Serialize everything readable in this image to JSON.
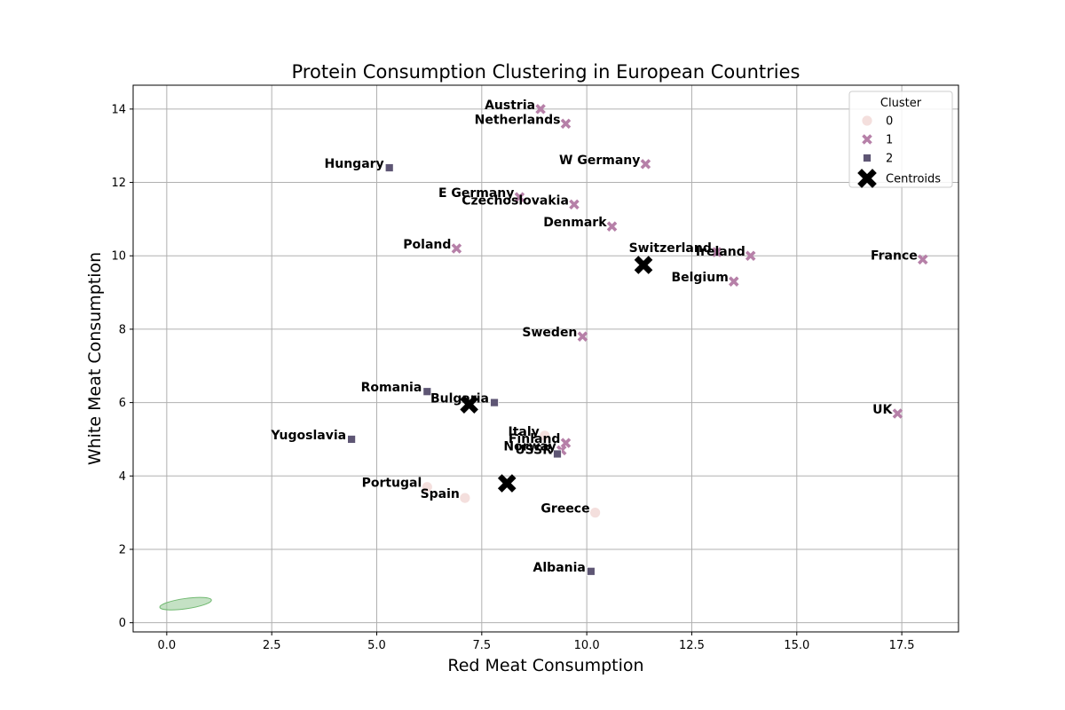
{
  "chart_data": {
    "type": "scatter",
    "title": "Protein Consumption Clustering in European Countries",
    "xlabel": "Red Meat Consumption",
    "ylabel": "White Meat Consumption",
    "xlim": [
      -0.8,
      18.85
    ],
    "ylim": [
      -0.25,
      14.65
    ],
    "xticks": [
      "0.0",
      "2.5",
      "5.0",
      "7.5",
      "10.0",
      "12.5",
      "15.0",
      "17.5"
    ],
    "xtick_values": [
      0,
      2.5,
      5,
      7.5,
      10,
      12.5,
      15,
      17.5
    ],
    "yticks": [
      "0",
      "2",
      "4",
      "6",
      "8",
      "10",
      "12",
      "14"
    ],
    "ytick_values": [
      0,
      2,
      4,
      6,
      8,
      10,
      12,
      14
    ],
    "grid": true,
    "legend": {
      "title": "Cluster",
      "placement": "top-right",
      "entries": [
        {
          "label": "0",
          "marker": "circle",
          "color": "#f1d7d4"
        },
        {
          "label": "1",
          "marker": "x",
          "color": "#b680a8"
        },
        {
          "label": "2",
          "marker": "square",
          "color": "#5e5674"
        },
        {
          "label": "Centroids",
          "marker": "big-x",
          "color": "#000000"
        }
      ]
    },
    "series": [
      {
        "name": "0",
        "marker": "circle",
        "color": "#f1d7d4",
        "points": [
          {
            "label": "Italy",
            "x": 9.0,
            "y": 5.1
          },
          {
            "label": "Portugal",
            "x": 6.2,
            "y": 3.7
          },
          {
            "label": "Spain",
            "x": 7.1,
            "y": 3.4
          },
          {
            "label": "Greece",
            "x": 10.2,
            "y": 3.0
          }
        ]
      },
      {
        "name": "1",
        "marker": "x",
        "color": "#b680a8",
        "points": [
          {
            "label": "Austria",
            "x": 8.9,
            "y": 14.0
          },
          {
            "label": "Netherlands",
            "x": 9.5,
            "y": 13.6
          },
          {
            "label": "W Germany",
            "x": 11.4,
            "y": 12.5
          },
          {
            "label": "E Germany",
            "x": 8.4,
            "y": 11.6
          },
          {
            "label": "Czechoslovakia",
            "x": 9.7,
            "y": 11.4
          },
          {
            "label": "Denmark",
            "x": 10.6,
            "y": 10.8
          },
          {
            "label": "Poland",
            "x": 6.9,
            "y": 10.2
          },
          {
            "label": "Switzerland",
            "x": 13.1,
            "y": 10.1
          },
          {
            "label": "Ireland",
            "x": 13.9,
            "y": 10.0
          },
          {
            "label": "France",
            "x": 18.0,
            "y": 9.9
          },
          {
            "label": "Belgium",
            "x": 13.5,
            "y": 9.3
          },
          {
            "label": "Sweden",
            "x": 9.9,
            "y": 7.8
          },
          {
            "label": "UK",
            "x": 17.4,
            "y": 5.7
          },
          {
            "label": "Finland",
            "x": 9.5,
            "y": 4.9
          },
          {
            "label": "Norway",
            "x": 9.4,
            "y": 4.7
          }
        ]
      },
      {
        "name": "2",
        "marker": "square",
        "color": "#5e5674",
        "points": [
          {
            "label": "Hungary",
            "x": 5.3,
            "y": 12.4
          },
          {
            "label": "Romania",
            "x": 6.2,
            "y": 6.3
          },
          {
            "label": "Bulgaria",
            "x": 7.8,
            "y": 6.0
          },
          {
            "label": "Yugoslavia",
            "x": 4.4,
            "y": 5.0
          },
          {
            "label": "USSR",
            "x": 9.3,
            "y": 4.6
          },
          {
            "label": "Albania",
            "x": 10.1,
            "y": 1.4
          }
        ]
      }
    ],
    "centroids": [
      {
        "x": 11.35,
        "y": 9.75
      },
      {
        "x": 7.2,
        "y": 5.95
      },
      {
        "x": 8.1,
        "y": 3.8
      }
    ],
    "ellipse": {
      "cx": 0.45,
      "cy": 0.52,
      "rx": 0.62,
      "ry": 0.14,
      "color": "#93c993"
    }
  }
}
